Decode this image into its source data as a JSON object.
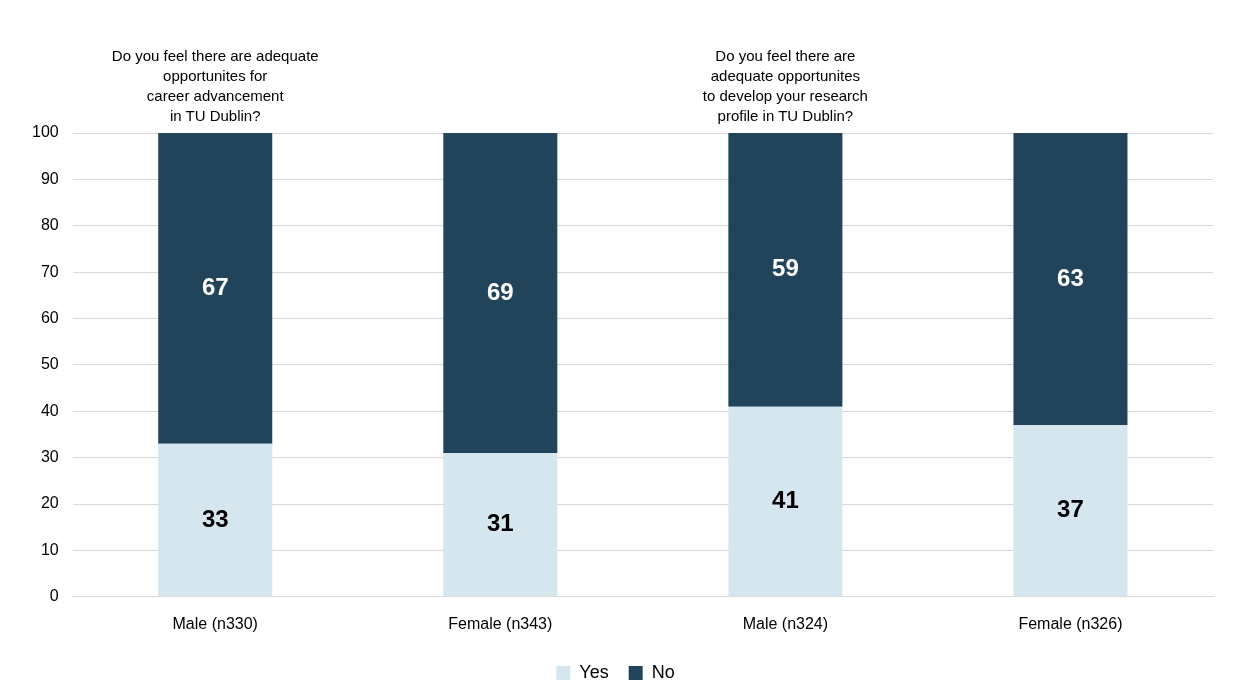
{
  "chart_data": {
    "type": "bar",
    "stacked": true,
    "categories": [
      "Male (n330)",
      "Female (n343)",
      "Male (n324)",
      "Female (n326)"
    ],
    "series": [
      {
        "name": "Yes",
        "color": "#d6e6ef",
        "values": [
          33,
          31,
          41,
          37
        ]
      },
      {
        "name": "No",
        "color": "#22445a",
        "values": [
          67,
          69,
          59,
          63
        ]
      }
    ],
    "ylim": [
      0,
      100
    ],
    "yticks": [
      0,
      10,
      20,
      30,
      40,
      50,
      60,
      70,
      80,
      90,
      100
    ],
    "grid": "y",
    "legend": "bottom",
    "data_labels": true,
    "annotations": [
      "Do you feel there are adequate\nopportunites for\ncareer advancement\nin TU Dublin?",
      "Do you feel there are\nadequate opportunites\nto develop your research\nprofile in TU Dublin?"
    ]
  }
}
